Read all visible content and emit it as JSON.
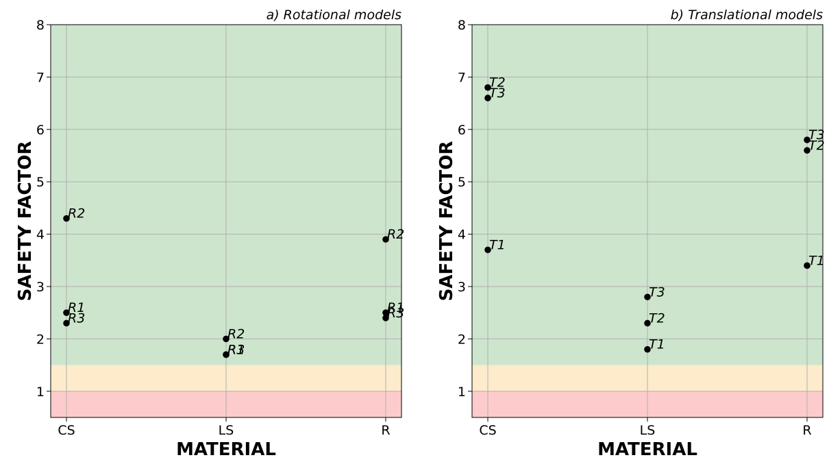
{
  "chart_data": [
    {
      "type": "scatter",
      "title": "a) Rotational models",
      "xlabel": "MATERIAL",
      "ylabel": "SAFETY FACTOR",
      "categories": [
        "CS",
        "LS",
        "R"
      ],
      "ylim": [
        0.5,
        8
      ],
      "yticks": [
        "1",
        "2",
        "3",
        "4",
        "5",
        "6",
        "7",
        "8"
      ],
      "grid": true,
      "bands": [
        {
          "from": 0.5,
          "to": 1.0,
          "color": "#fdcbcb"
        },
        {
          "from": 1.0,
          "to": 1.5,
          "color": "#fdebcb"
        },
        {
          "from": 1.5,
          "to": 8.0,
          "color": "#cde5cd"
        }
      ],
      "points": [
        {
          "x": "CS",
          "y": 4.3,
          "label": "R2"
        },
        {
          "x": "CS",
          "y": 2.5,
          "label": "R1"
        },
        {
          "x": "CS",
          "y": 2.3,
          "label": "R3"
        },
        {
          "x": "LS",
          "y": 2.0,
          "label": "R2"
        },
        {
          "x": "LS",
          "y": 1.7,
          "label": "R1"
        },
        {
          "x": "LS",
          "y": 1.7,
          "label": "R3"
        },
        {
          "x": "R",
          "y": 3.9,
          "label": "R2"
        },
        {
          "x": "R",
          "y": 2.5,
          "label": "R1"
        },
        {
          "x": "R",
          "y": 2.4,
          "label": "R3"
        }
      ]
    },
    {
      "type": "scatter",
      "title": "b) Translational models",
      "xlabel": "MATERIAL",
      "ylabel": "SAFETY FACTOR",
      "categories": [
        "CS",
        "LS",
        "R"
      ],
      "ylim": [
        0.5,
        8
      ],
      "yticks": [
        "1",
        "2",
        "3",
        "4",
        "5",
        "6",
        "7",
        "8"
      ],
      "grid": true,
      "bands": [
        {
          "from": 0.5,
          "to": 1.0,
          "color": "#fdcbcb"
        },
        {
          "from": 1.0,
          "to": 1.5,
          "color": "#fdebcb"
        },
        {
          "from": 1.5,
          "to": 8.0,
          "color": "#cde5cd"
        }
      ],
      "points": [
        {
          "x": "CS",
          "y": 6.8,
          "label": "T2"
        },
        {
          "x": "CS",
          "y": 6.6,
          "label": "T3"
        },
        {
          "x": "CS",
          "y": 3.7,
          "label": "T1"
        },
        {
          "x": "LS",
          "y": 2.8,
          "label": "T3"
        },
        {
          "x": "LS",
          "y": 2.3,
          "label": "T2"
        },
        {
          "x": "LS",
          "y": 1.8,
          "label": "T1"
        },
        {
          "x": "R",
          "y": 5.8,
          "label": "T3"
        },
        {
          "x": "R",
          "y": 5.6,
          "label": "T2"
        },
        {
          "x": "R",
          "y": 3.4,
          "label": "T1"
        }
      ]
    }
  ]
}
